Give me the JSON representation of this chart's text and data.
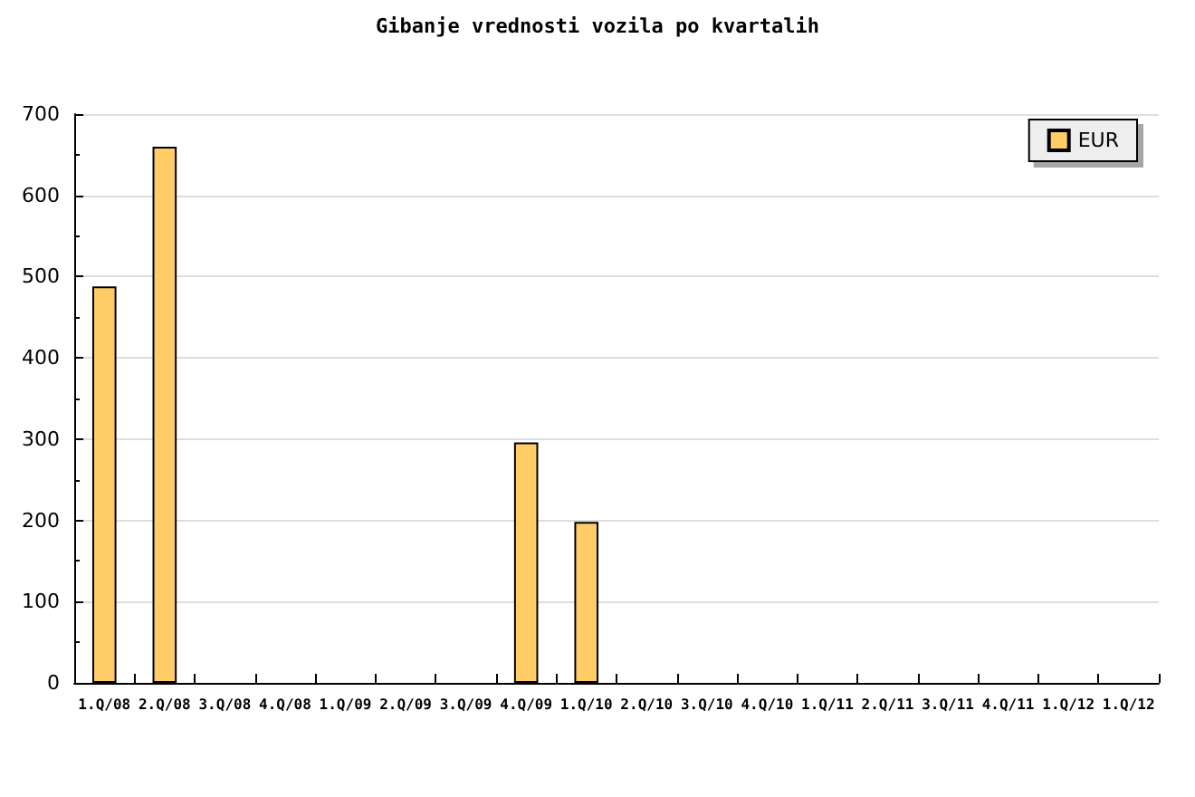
{
  "chart_data": {
    "type": "bar",
    "title": "Gibanje vrednosti vozila po kvartalih",
    "categories": [
      "1.Q/08",
      "2.Q/08",
      "3.Q/08",
      "4.Q/08",
      "1.Q/09",
      "2.Q/09",
      "3.Q/09",
      "4.Q/09",
      "1.Q/10",
      "2.Q/10",
      "3.Q/10",
      "4.Q/10",
      "1.Q/11",
      "2.Q/11",
      "3.Q/11",
      "4.Q/11",
      "1.Q/12",
      "1.Q/12"
    ],
    "series": [
      {
        "name": "EUR",
        "color": "#ffcc66",
        "values": [
          488,
          660,
          null,
          null,
          null,
          null,
          null,
          296,
          198,
          null,
          null,
          null,
          null,
          null,
          null,
          null,
          null,
          null
        ]
      }
    ],
    "ylim": [
      0,
      700
    ],
    "yticks": [
      0,
      100,
      200,
      300,
      400,
      500,
      600,
      700
    ],
    "grid": "y",
    "legend": "top right"
  }
}
